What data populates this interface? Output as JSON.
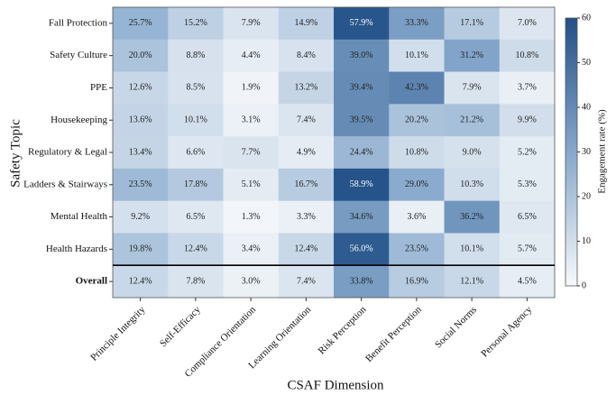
{
  "chart_data": {
    "type": "heatmap",
    "xlabel": "CSAF Dimension",
    "ylabel": "Safety Topic",
    "columns": [
      "Principle Integrity",
      "Self-Efficacy",
      "Compliance Orientation",
      "Learning Orientation",
      "Risk Perception",
      "Benefit Perception",
      "Social Norms",
      "Personal Agency"
    ],
    "rows": [
      "Fall Protection",
      "Safety Culture",
      "PPE",
      "Housekeeping",
      "Regulatory & Legal",
      "Ladders & Stairways",
      "Mental Health",
      "Health Hazards",
      "Overall"
    ],
    "values": [
      [
        25.7,
        15.2,
        7.9,
        14.9,
        57.9,
        33.3,
        17.1,
        7.0
      ],
      [
        20.0,
        8.8,
        4.4,
        8.4,
        39.0,
        10.1,
        31.2,
        10.8
      ],
      [
        12.6,
        8.5,
        1.9,
        13.2,
        39.4,
        42.3,
        7.9,
        3.7
      ],
      [
        13.6,
        10.1,
        3.1,
        7.4,
        39.5,
        20.2,
        21.2,
        9.9
      ],
      [
        13.4,
        6.6,
        7.7,
        4.9,
        24.4,
        10.8,
        9.0,
        5.2
      ],
      [
        23.5,
        17.8,
        5.1,
        16.7,
        58.9,
        29.0,
        10.3,
        5.3
      ],
      [
        9.2,
        6.5,
        1.3,
        3.3,
        34.6,
        3.6,
        36.2,
        6.5
      ],
      [
        19.8,
        12.4,
        3.4,
        12.4,
        56.0,
        23.5,
        10.1,
        5.7
      ],
      [
        12.4,
        7.8,
        3.0,
        7.4,
        33.8,
        16.9,
        12.1,
        4.5
      ]
    ],
    "value_labels": [
      [
        "25.7%",
        "15.2%",
        "7.9%",
        "14.9%",
        "57.9%",
        "33.3%",
        "17.1%",
        "7.0%"
      ],
      [
        "20.0%",
        "8.8%",
        "4.4%",
        "8.4%",
        "39.0%",
        "10.1%",
        "31.2%",
        "10.8%"
      ],
      [
        "12.6%",
        "8.5%",
        "1.9%",
        "13.2%",
        "39.4%",
        "42.3%",
        "7.9%",
        "3.7%"
      ],
      [
        "13.6%",
        "10.1%",
        "3.1%",
        "7.4%",
        "39.5%",
        "20.2%",
        "21.2%",
        "9.9%"
      ],
      [
        "13.4%",
        "6.6%",
        "7.7%",
        "4.9%",
        "24.4%",
        "10.8%",
        "9.0%",
        "5.2%"
      ],
      [
        "23.5%",
        "17.8%",
        "5.1%",
        "16.7%",
        "58.9%",
        "29.0%",
        "10.3%",
        "5.3%"
      ],
      [
        "9.2%",
        "6.5%",
        "1.3%",
        "3.3%",
        "34.6%",
        "3.6%",
        "36.2%",
        "6.5%"
      ],
      [
        "19.8%",
        "12.4%",
        "3.4%",
        "12.4%",
        "56.0%",
        "23.5%",
        "10.1%",
        "5.7%"
      ],
      [
        "12.4%",
        "7.8%",
        "3.0%",
        "7.4%",
        "33.8%",
        "16.9%",
        "12.1%",
        "4.5%"
      ]
    ],
    "colorbar_label": "Engagement rate (%)",
    "clim": [
      0,
      60
    ],
    "cticks": [
      0,
      10,
      20,
      30,
      40,
      50,
      60
    ],
    "colormap": [
      "#f7f9fb",
      "#86a8cc",
      "#215087"
    ]
  }
}
